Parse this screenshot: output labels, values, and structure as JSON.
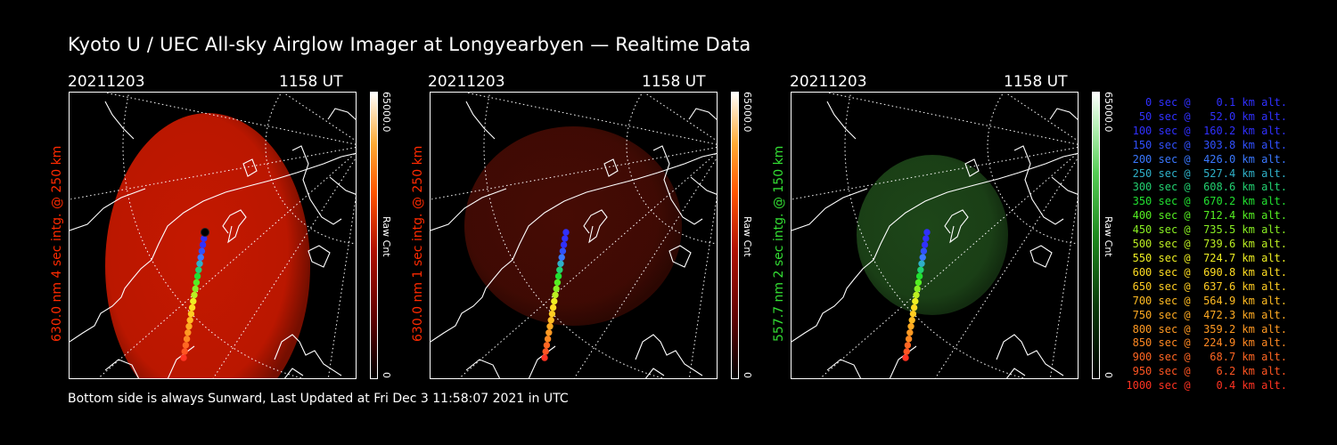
{
  "title": "Kyoto U / UEC All-sky Airglow Imager at Longyearbyen — Realtime Data",
  "panels": [
    {
      "date": "20211203",
      "time": "1158 UT",
      "ylabel": "630.0 nm 4 sec intg. @ 250 km",
      "ylabel_color": "#ff2a00",
      "cbar_max": "65000.0",
      "cbar_label": "Raw Cnt",
      "cbar_min": "0",
      "image_color": "#c41800",
      "image_intensity": "bright"
    },
    {
      "date": "20211203",
      "time": "1158 UT",
      "ylabel": "630.0 nm 1 sec intg. @ 250 km",
      "ylabel_color": "#ff2a00",
      "cbar_max": "65000.0",
      "cbar_label": "Raw Cnt",
      "cbar_min": "0",
      "image_color": "#4a0c04",
      "image_intensity": "dim"
    },
    {
      "date": "20211203",
      "time": "1158 UT",
      "ylabel": "557.7 nm 2 sec intg. @ 150 km",
      "ylabel_color": "#33dd33",
      "cbar_max": "65000.0",
      "cbar_label": "Raw Cnt",
      "cbar_min": "0",
      "image_color": "#1f4a1a",
      "image_intensity": "dim"
    }
  ],
  "footer": "Bottom side is always Sunward, Last Updated at Fri Dec  3 11:58:07 2021 in UTC",
  "legend": [
    {
      "text": "   0 sec @    0.1 km alt.",
      "color": "#3030ff"
    },
    {
      "text": "  50 sec @   52.0 km alt.",
      "color": "#3030ff"
    },
    {
      "text": " 100 sec @  160.2 km alt.",
      "color": "#3030ff"
    },
    {
      "text": " 150 sec @  303.8 km alt.",
      "color": "#3050ff"
    },
    {
      "text": " 200 sec @  426.0 km alt.",
      "color": "#3a78ff"
    },
    {
      "text": " 250 sec @  527.4 km alt.",
      "color": "#2fb0c8"
    },
    {
      "text": " 300 sec @  608.6 km alt.",
      "color": "#22d070"
    },
    {
      "text": " 350 sec @  670.2 km alt.",
      "color": "#22e030"
    },
    {
      "text": " 400 sec @  712.4 km alt.",
      "color": "#55ee22"
    },
    {
      "text": " 450 sec @  735.5 km alt.",
      "color": "#88ee22"
    },
    {
      "text": " 500 sec @  739.6 km alt.",
      "color": "#bbee22"
    },
    {
      "text": " 550 sec @  724.7 km alt.",
      "color": "#eeee22"
    },
    {
      "text": " 600 sec @  690.8 km alt.",
      "color": "#ffdd22"
    },
    {
      "text": " 650 sec @  637.6 km alt.",
      "color": "#ffcc22"
    },
    {
      "text": " 700 sec @  564.9 km alt.",
      "color": "#ffbb22"
    },
    {
      "text": " 750 sec @  472.3 km alt.",
      "color": "#ffaa22"
    },
    {
      "text": " 800 sec @  359.2 km alt.",
      "color": "#ff9922"
    },
    {
      "text": " 850 sec @  224.9 km alt.",
      "color": "#ff8822"
    },
    {
      "text": " 900 sec @   68.7 km alt.",
      "color": "#ff6622"
    },
    {
      "text": " 950 sec @    6.2 km alt.",
      "color": "#ff5522"
    },
    {
      "text": "1000 sec @    0.4 km alt.",
      "color": "#ff3322"
    }
  ]
}
